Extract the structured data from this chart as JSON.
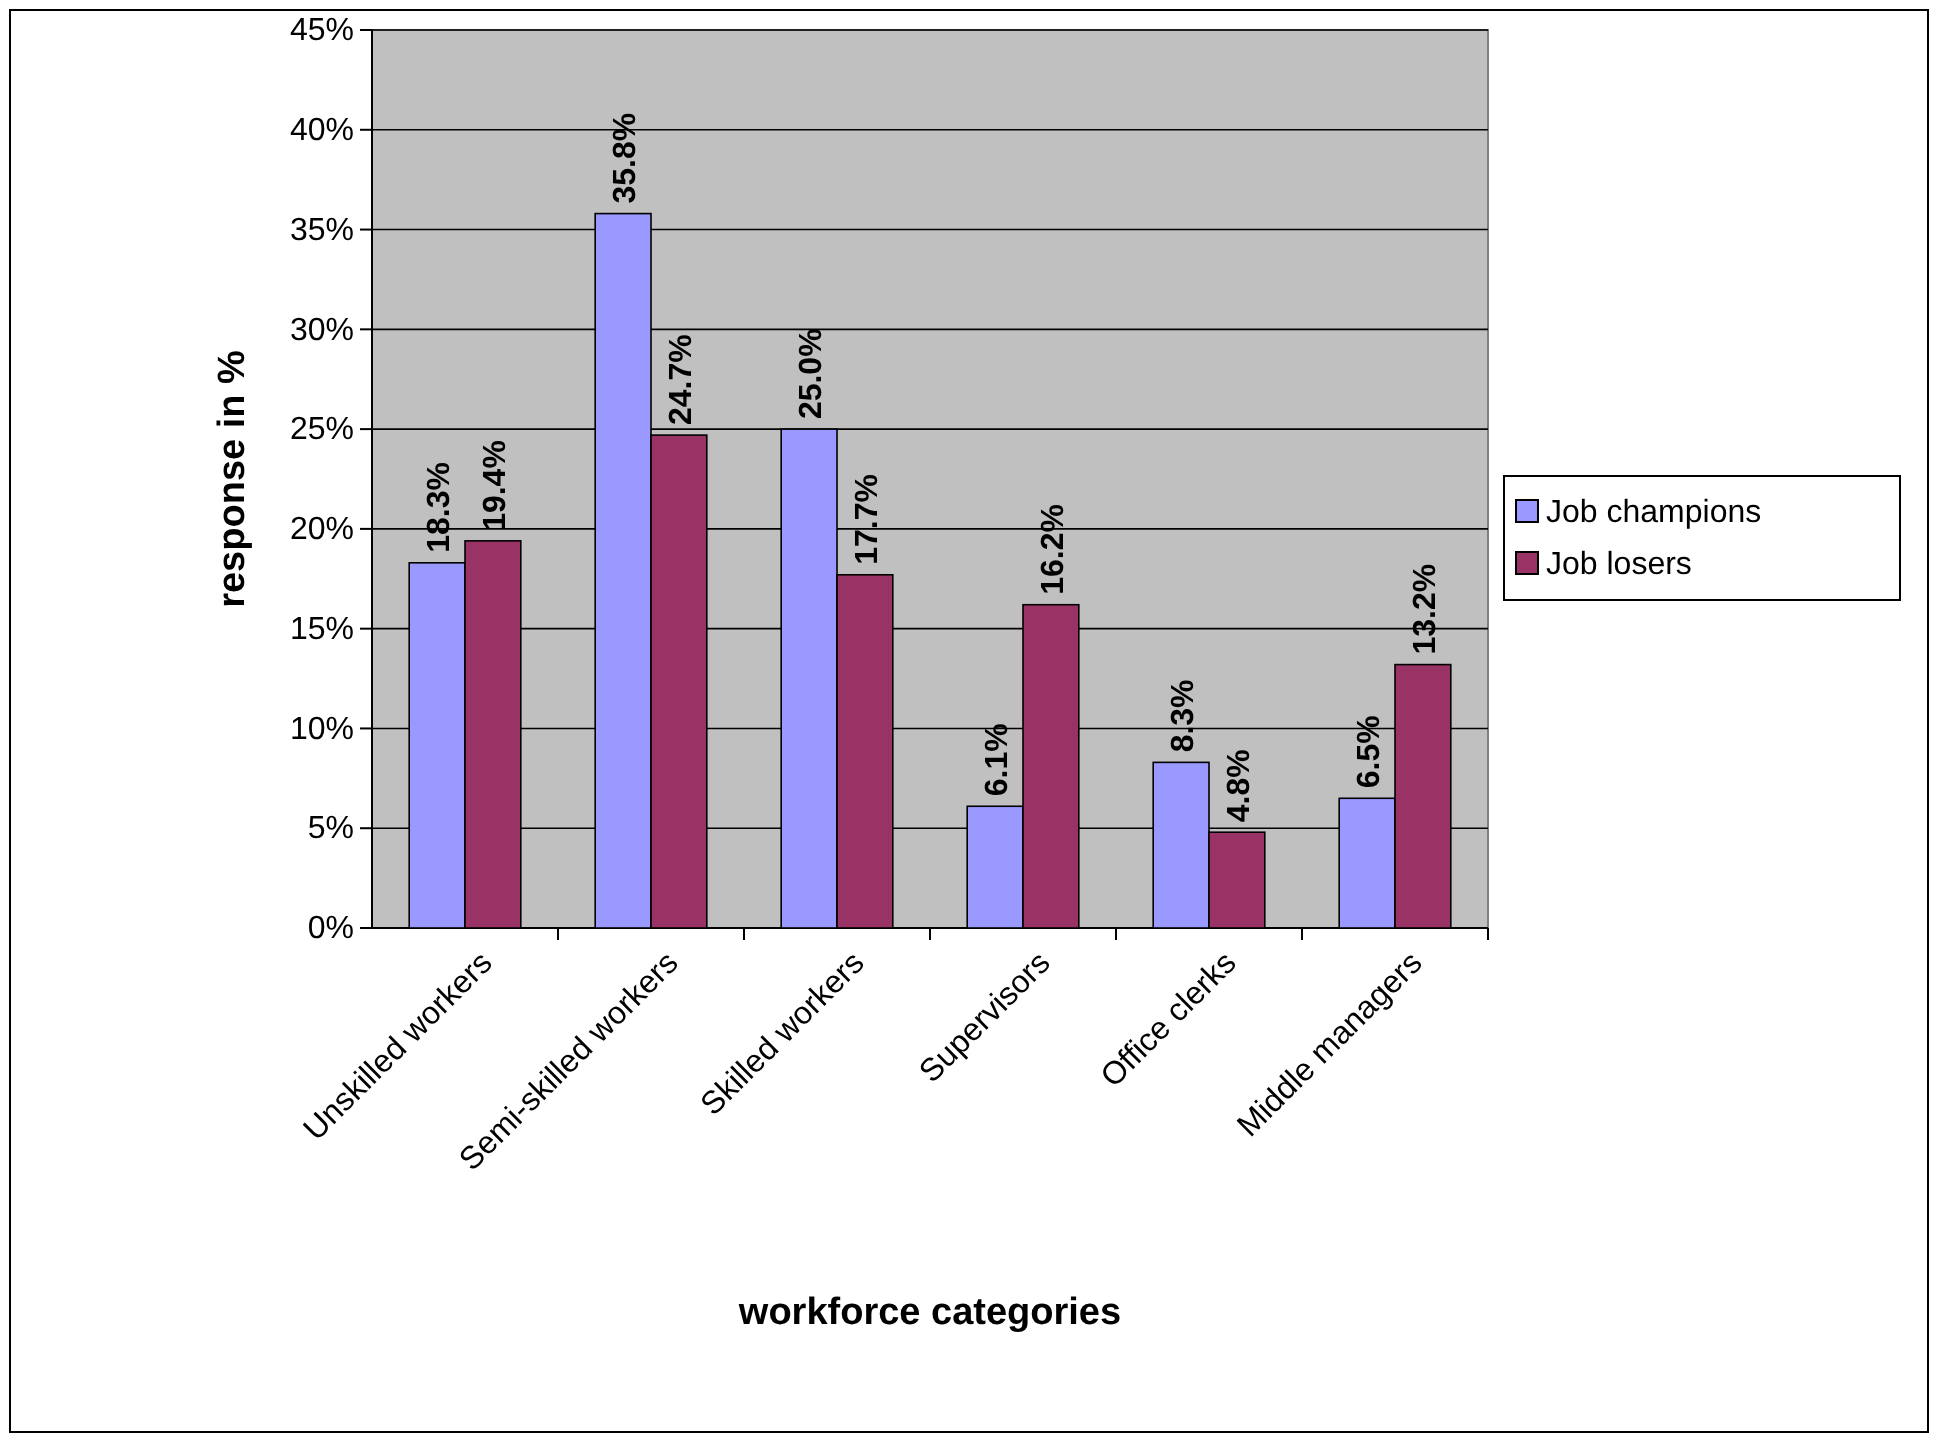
{
  "chart_data": {
    "type": "bar",
    "xlabel": "workforce categories",
    "ylabel": "response in %",
    "categories": [
      "Unskilled workers",
      "Semi-skilled workers",
      "Skilled workers",
      "Supervisors",
      "Office clerks",
      "Middle managers"
    ],
    "series": [
      {
        "name": "Job champions",
        "color": "#9999ff",
        "values": [
          18.3,
          35.8,
          25.0,
          6.1,
          8.3,
          6.5
        ],
        "value_labels": [
          "18.3%",
          "35.8%",
          "25.0%",
          "6.1%",
          "8.3%",
          "6.5%"
        ]
      },
      {
        "name": "Job losers",
        "color": "#993366",
        "values": [
          19.4,
          24.7,
          17.7,
          16.2,
          4.8,
          13.2
        ],
        "value_labels": [
          "19.4%",
          "24.7%",
          "17.7%",
          "16.2%",
          "4.8%",
          "13.2%"
        ]
      }
    ],
    "ylim": [
      0,
      45
    ],
    "yticks": [
      {
        "value": 0,
        "label": "0%"
      },
      {
        "value": 5,
        "label": "5%"
      },
      {
        "value": 10,
        "label": "10%"
      },
      {
        "value": 15,
        "label": "15%"
      },
      {
        "value": 20,
        "label": "20%"
      },
      {
        "value": 25,
        "label": "25%"
      },
      {
        "value": 30,
        "label": "30%"
      },
      {
        "value": 35,
        "label": "35%"
      },
      {
        "value": 40,
        "label": "40%"
      },
      {
        "value": 45,
        "label": "45%"
      }
    ],
    "grid": "y",
    "legend": "right"
  }
}
